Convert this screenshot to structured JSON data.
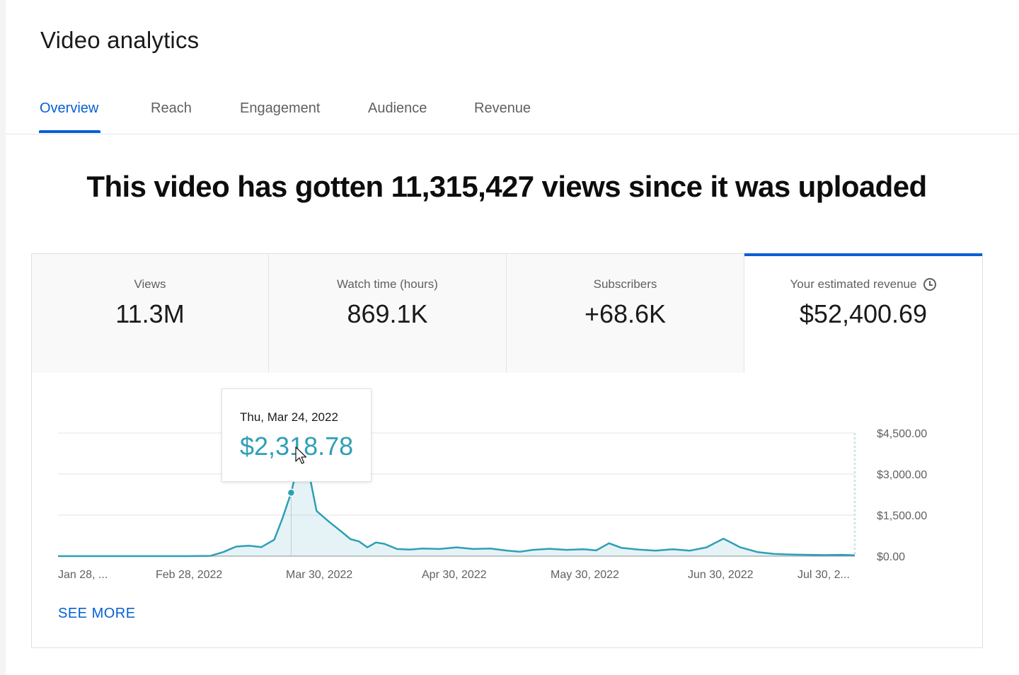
{
  "page": {
    "title": "Video analytics"
  },
  "tabs": [
    {
      "label": "Overview",
      "active": true
    },
    {
      "label": "Reach"
    },
    {
      "label": "Engagement"
    },
    {
      "label": "Audience"
    },
    {
      "label": "Revenue"
    }
  ],
  "headline": "This video has gotten 11,315,427 views since it was uploaded",
  "metrics": [
    {
      "label": "Views",
      "value": "11.3M"
    },
    {
      "label": "Watch time (hours)",
      "value": "869.1K"
    },
    {
      "label": "Subscribers",
      "value": "+68.6K"
    },
    {
      "label": "Your estimated revenue",
      "value": "$52,400.69",
      "active": true,
      "icon": "clock-icon"
    }
  ],
  "tooltip": {
    "date": "Thu, Mar 24, 2022",
    "value": "$2,318.78"
  },
  "see_more": "SEE MORE",
  "colors": {
    "accent": "#065fd4",
    "line": "#2e9fb7"
  },
  "chart_data": {
    "type": "area",
    "x_tick_labels": [
      "Jan 28, ...",
      "Feb 28, 2022",
      "Mar 30, 2022",
      "Apr 30, 2022",
      "May 30, 2022",
      "Jun 30, 2022",
      "Jul 30, 2..."
    ],
    "y_tick_labels": [
      "$4,500.00",
      "$3,000.00",
      "$1,500.00",
      "$0.00"
    ],
    "y_ticks": [
      4500,
      3000,
      1500,
      0
    ],
    "ylim": [
      0,
      4500
    ],
    "xlim": [
      "2022-01-28",
      "2022-08-04"
    ],
    "grid": true,
    "series": [
      {
        "points": [
          [
            "2022-01-28",
            0
          ],
          [
            "2022-02-07",
            0
          ],
          [
            "2022-02-17",
            0
          ],
          [
            "2022-02-27",
            0
          ],
          [
            "2022-03-05",
            10
          ],
          [
            "2022-03-08",
            150
          ],
          [
            "2022-03-11",
            350
          ],
          [
            "2022-03-14",
            380
          ],
          [
            "2022-03-17",
            330
          ],
          [
            "2022-03-20",
            600
          ],
          [
            "2022-03-22",
            1400
          ],
          [
            "2022-03-24",
            2318.78
          ],
          [
            "2022-03-26",
            3600
          ],
          [
            "2022-03-28",
            3200
          ],
          [
            "2022-03-30",
            1650
          ],
          [
            "2022-04-02",
            1250
          ],
          [
            "2022-04-05",
            880
          ],
          [
            "2022-04-07",
            620
          ],
          [
            "2022-04-09",
            540
          ],
          [
            "2022-04-11",
            320
          ],
          [
            "2022-04-13",
            500
          ],
          [
            "2022-04-15",
            450
          ],
          [
            "2022-04-18",
            260
          ],
          [
            "2022-04-21",
            240
          ],
          [
            "2022-04-24",
            280
          ],
          [
            "2022-04-28",
            260
          ],
          [
            "2022-05-02",
            320
          ],
          [
            "2022-05-06",
            260
          ],
          [
            "2022-05-10",
            280
          ],
          [
            "2022-05-14",
            200
          ],
          [
            "2022-05-17",
            160
          ],
          [
            "2022-05-20",
            230
          ],
          [
            "2022-05-24",
            270
          ],
          [
            "2022-05-28",
            230
          ],
          [
            "2022-06-01",
            250
          ],
          [
            "2022-06-04",
            210
          ],
          [
            "2022-06-07",
            470
          ],
          [
            "2022-06-10",
            300
          ],
          [
            "2022-06-14",
            240
          ],
          [
            "2022-06-18",
            200
          ],
          [
            "2022-06-22",
            250
          ],
          [
            "2022-06-26",
            200
          ],
          [
            "2022-06-30",
            320
          ],
          [
            "2022-07-04",
            640
          ],
          [
            "2022-07-08",
            320
          ],
          [
            "2022-07-12",
            150
          ],
          [
            "2022-07-16",
            80
          ],
          [
            "2022-07-20",
            60
          ],
          [
            "2022-07-24",
            50
          ],
          [
            "2022-07-28",
            40
          ],
          [
            "2022-08-01",
            50
          ],
          [
            "2022-08-04",
            30
          ]
        ]
      }
    ],
    "highlight": {
      "x": "2022-03-24",
      "y": 2318.78
    }
  }
}
